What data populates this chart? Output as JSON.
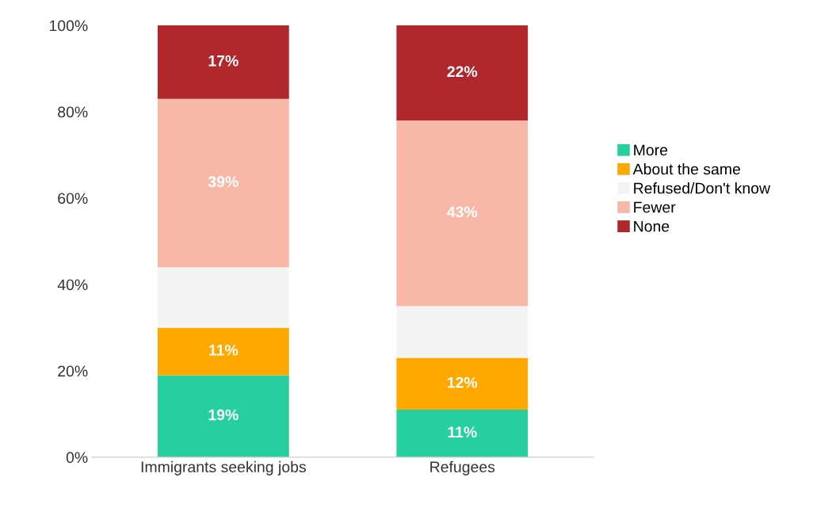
{
  "chart_data": {
    "type": "bar",
    "stacked": true,
    "categories": [
      "Immigrants seeking jobs",
      "Refugees"
    ],
    "series": [
      {
        "name": "More",
        "color": "#26cfa0",
        "values": [
          19,
          11
        ],
        "value_labels": [
          "19%",
          "11%"
        ]
      },
      {
        "name": "About the same",
        "color": "#ffa800",
        "values": [
          11,
          12
        ],
        "value_labels": [
          "11%",
          "12%"
        ]
      },
      {
        "name": "Refused/Don't know",
        "color": "#f4f4f4",
        "values": [
          14,
          12
        ],
        "value_labels": [
          null,
          null
        ]
      },
      {
        "name": "Fewer",
        "color": "#f8b8a8",
        "values": [
          39,
          43
        ],
        "value_labels": [
          "39%",
          "43%"
        ]
      },
      {
        "name": "None",
        "color": "#b0282c",
        "values": [
          17,
          22
        ],
        "value_labels": [
          "17%",
          "22%"
        ]
      }
    ],
    "ylim": [
      0,
      100
    ],
    "yticks": [
      {
        "value": 0,
        "label": "0%"
      },
      {
        "value": 20,
        "label": "20%"
      },
      {
        "value": 40,
        "label": "40%"
      },
      {
        "value": 60,
        "label": "60%"
      },
      {
        "value": 80,
        "label": "80%"
      },
      {
        "value": 100,
        "label": "100%"
      }
    ],
    "grid": false,
    "legend": "right"
  }
}
